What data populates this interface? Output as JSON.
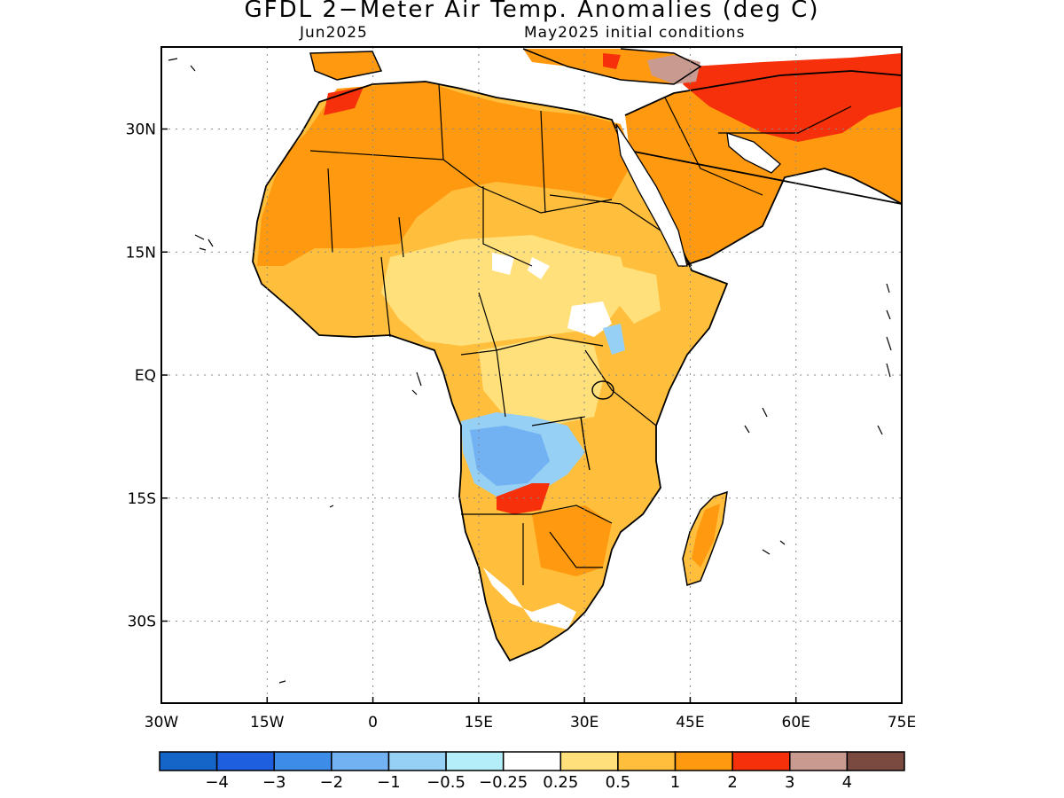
{
  "title": "GFDL 2−Meter Air Temp. Anomalies (deg C)",
  "subtitle_left": "Jun2025",
  "subtitle_right": "May2025 initial conditions",
  "map": {
    "lon_range": [
      -30,
      75
    ],
    "lat_range": [
      -40,
      40
    ],
    "lon_ticks": [
      "30W",
      "15W",
      "0",
      "15E",
      "30E",
      "45E",
      "60E",
      "75E"
    ],
    "lat_ticks": [
      "30N",
      "15N",
      "EQ",
      "15S",
      "30S"
    ],
    "grid": "dotted"
  },
  "colorbar": {
    "colors": [
      "#1565c8",
      "#1e5fe0",
      "#3c8ce8",
      "#73b2f2",
      "#96d0f5",
      "#b4eef8",
      "#ffffff",
      "#ffe07a",
      "#ffbe3c",
      "#ff9a10",
      "#f5300a",
      "#c89a90",
      "#7a4a40"
    ],
    "labels": [
      "−4",
      "−3",
      "−2",
      "−1",
      "−0.5",
      "−0.25",
      "0.25",
      "0.5",
      "1",
      "2",
      "3",
      "4"
    ]
  }
}
